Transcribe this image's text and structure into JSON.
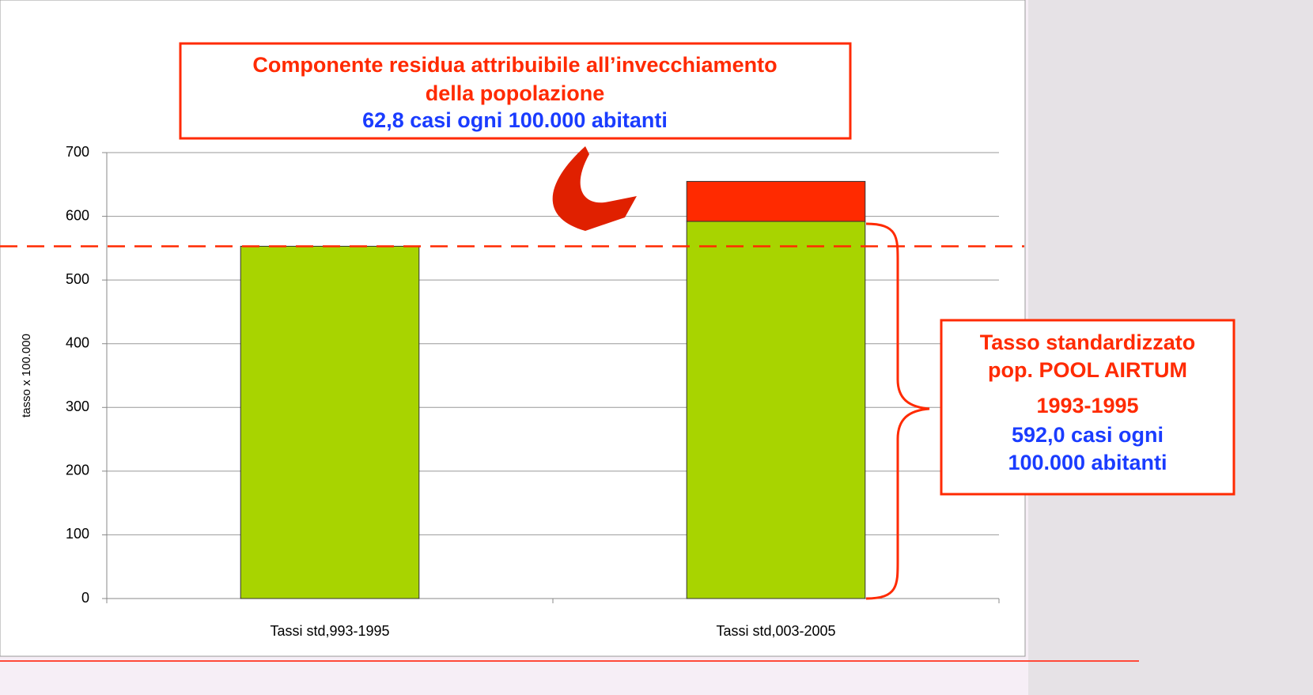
{
  "chart_data": {
    "type": "bar",
    "stacked": true,
    "categories": [
      "Tassi std,993-1995",
      "Tassi std,003-2005"
    ],
    "series": [
      {
        "name": "Tasso standardizzato",
        "color": "#a8d400",
        "values": [
          553,
          592
        ]
      },
      {
        "name": "Componente residua",
        "color": "#ff2a00",
        "values": [
          null,
          62.8
        ]
      }
    ],
    "ylabel": "tasso x 100.000",
    "ylim": [
      0,
      700
    ],
    "yticks": [
      0,
      100,
      200,
      300,
      400,
      500,
      600,
      700
    ],
    "grid": true,
    "annotations": {
      "top": [
        "Componente residua attribuibile all’invecchiamento",
        "della popolazione",
        "62,8 casi ogni 100.000 abitanti"
      ],
      "right": [
        "Tasso standardizzato",
        "pop. POOL AIRTUM",
        "1993-1995",
        "592,0 casi ogni",
        "100.000 abitanti"
      ]
    }
  }
}
